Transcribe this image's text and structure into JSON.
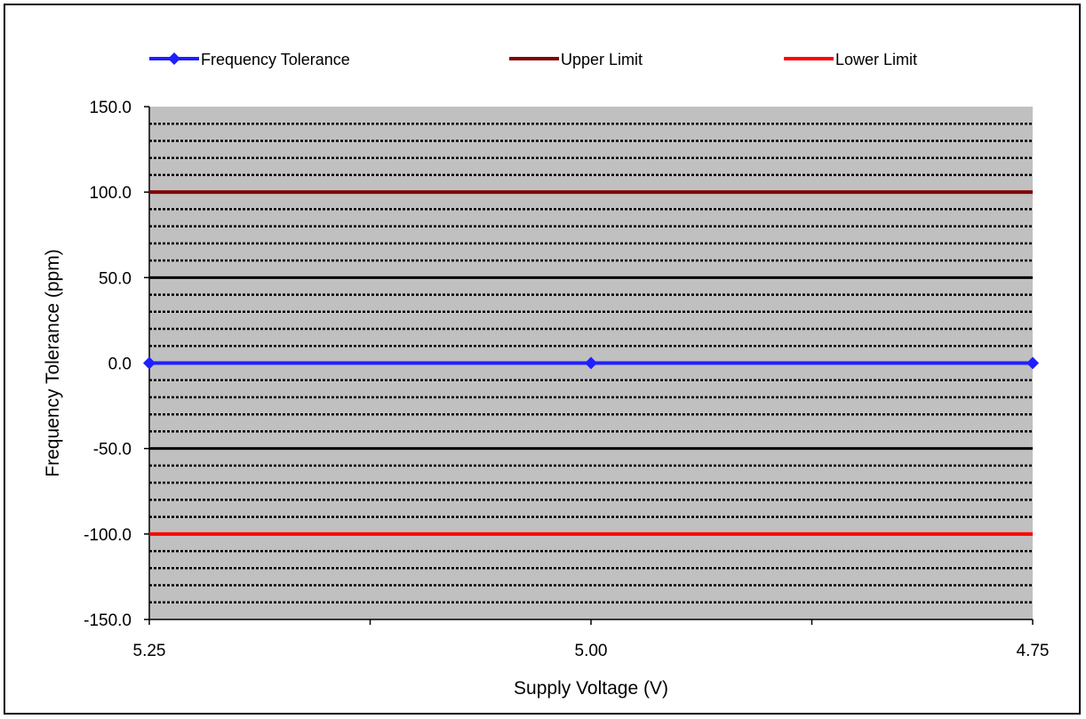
{
  "chart_data": {
    "type": "line",
    "categories": [
      "5.25",
      "5.00",
      "4.75"
    ],
    "xlabel": "Supply Voltage (V)",
    "ylabel": "Frequency Tolerance  (ppm)",
    "ylim": [
      -150,
      150
    ],
    "y_ticks": [
      "150.0",
      "100.0",
      "50.0",
      "0.0",
      "-50.0",
      "-100.0",
      "-150.0"
    ],
    "grid": true,
    "legend_position": "top",
    "series": [
      {
        "name": "Frequency Tolerance",
        "values": [
          0,
          0,
          0
        ],
        "color": "#1f1fff",
        "marker": "diamond"
      },
      {
        "name": "Upper Limit",
        "values": [
          100,
          100,
          100
        ],
        "color": "#7f0000",
        "marker": "none"
      },
      {
        "name": "Lower Limit",
        "values": [
          -100,
          -100,
          -100
        ],
        "color": "#ff0000",
        "marker": "none"
      }
    ],
    "plot_background": "#c0c0c0"
  }
}
